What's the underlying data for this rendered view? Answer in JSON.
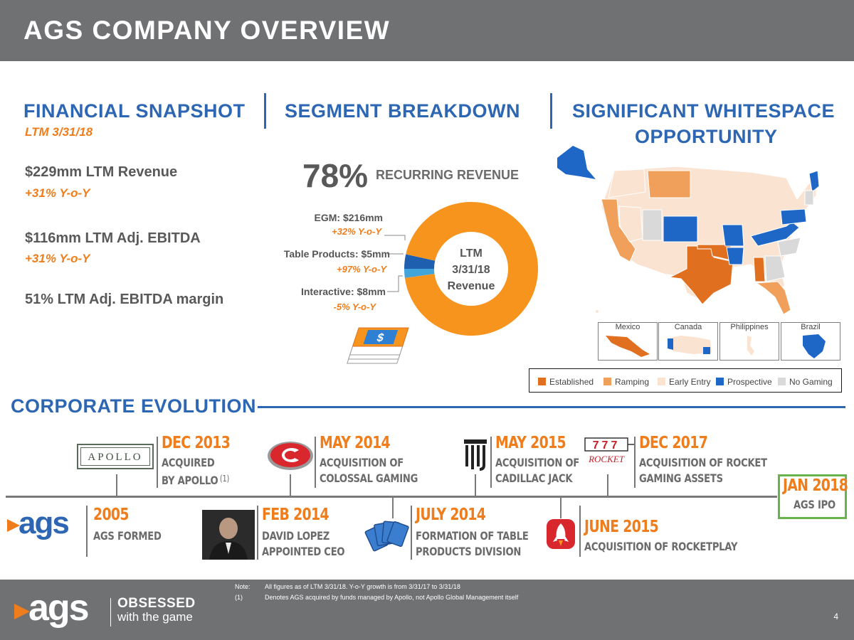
{
  "header": {
    "title": "AGS COMPANY OVERVIEW"
  },
  "financial": {
    "title": "FINANCIAL SNAPSHOT",
    "period": "LTM 3/31/18",
    "metrics": [
      {
        "label": "$229mm LTM Revenue",
        "growth": "+31% Y-o-Y"
      },
      {
        "label": "$116mm LTM Adj. EBITDA",
        "growth": "+31% Y-o-Y"
      },
      {
        "label": "51% LTM Adj. EBITDA margin"
      }
    ]
  },
  "segment": {
    "title": "SEGMENT BREAKDOWN",
    "recurring_pct": "78%",
    "recurring_label": "RECURRING REVENUE",
    "segments": [
      {
        "label": "EGM: $216mm",
        "growth": "+32% Y-o-Y",
        "value": 216,
        "color": "#f7941d"
      },
      {
        "label": "Table Products: $5mm",
        "growth": "+97% Y-o-Y",
        "value": 5,
        "color": "#41a5dc"
      },
      {
        "label": "Interactive: $8mm",
        "growth": "-5% Y-o-Y",
        "value": 8,
        "color": "#1f5fb0"
      }
    ],
    "center_lines": [
      "LTM",
      "3/31/18",
      "Revenue"
    ]
  },
  "whitespace": {
    "title_line1": "SIGNIFICANT WHITESPACE",
    "title_line2": "OPPORTUNITY",
    "insets": [
      "Mexico",
      "Canada",
      "Philippines",
      "Brazil"
    ],
    "legend": [
      {
        "label": "Established",
        "color": "#e07020"
      },
      {
        "label": "Ramping",
        "color": "#f0a05a"
      },
      {
        "label": "Early Entry",
        "color": "#fbe3d2"
      },
      {
        "label": "Prospective",
        "color": "#1f67c7"
      },
      {
        "label": "No Gaming",
        "color": "#d9d9d9"
      }
    ]
  },
  "corporate": {
    "title": "CORPORATE EVOLUTION",
    "apollo_logo_text": "APOLLO",
    "ags_logo_text": "ags",
    "events": [
      {
        "date": "DEC 2013",
        "line1": "ACQUIRED",
        "line2": "BY APOLLO",
        "footnote": "(1)"
      },
      {
        "date": "MAY 2014",
        "line1": "ACQUISITION OF",
        "line2": "COLOSSAL GAMING"
      },
      {
        "date": "MAY 2015",
        "line1": "ACQUISITION OF",
        "line2": "CADILLAC JACK"
      },
      {
        "date": "DEC 2017",
        "line1": "ACQUISITION OF ROCKET",
        "line2": "GAMING ASSETS"
      },
      {
        "date": "2005",
        "line1": "AGS FORMED"
      },
      {
        "date": "FEB 2014",
        "line1": "DAVID LOPEZ",
        "line2": "APPOINTED CEO"
      },
      {
        "date": "JULY 2014",
        "line1": "FORMATION OF TABLE",
        "line2": "PRODUCTS DIVISION"
      },
      {
        "date": "JUNE 2015",
        "line1": "ACQUISITION OF ROCKETPLAY"
      },
      {
        "date": "JAN 2018",
        "line1": "AGS IPO"
      }
    ]
  },
  "footer": {
    "logo_text": "ags",
    "tagline_line1": "OBSESSED",
    "tagline_line2": "with the game",
    "notes": [
      {
        "label": "Note:",
        "text": "All figures as of LTM 3/31/18. Y-o-Y growth is from 3/31/17 to 3/31/18"
      },
      {
        "label": "(1)",
        "text": "Denotes AGS acquired by funds managed by Apollo, not Apollo Global Management itself"
      }
    ],
    "page_number": "4"
  }
}
